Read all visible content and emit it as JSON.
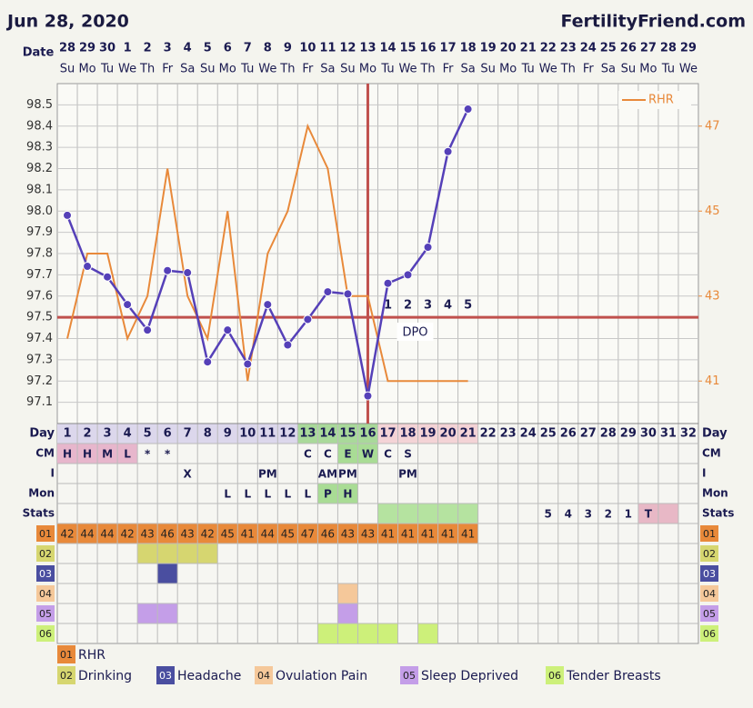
{
  "chart_data": {
    "type": "line",
    "title": "Jun 28, 2020",
    "brand": "FertilityFriend.com",
    "date_label": "Date",
    "day_label": "Day",
    "dates": [
      28,
      29,
      30,
      1,
      2,
      3,
      4,
      5,
      6,
      7,
      8,
      9,
      10,
      11,
      12,
      13,
      14,
      15,
      16,
      17,
      18,
      19,
      20,
      21,
      22,
      23,
      24,
      25,
      26,
      27,
      28,
      29
    ],
    "weekdays": [
      "Su",
      "Mo",
      "Tu",
      "We",
      "Th",
      "Fr",
      "Sa",
      "Su",
      "Mo",
      "Tu",
      "We",
      "Th",
      "Fr",
      "Sa",
      "Su",
      "Mo",
      "Tu",
      "We",
      "Th",
      "Fr",
      "Sa",
      "Su",
      "Mo",
      "Tu",
      "We",
      "Th",
      "Fr",
      "Sa",
      "Su",
      "Mo",
      "Tu",
      "We"
    ],
    "categories": [
      1,
      2,
      3,
      4,
      5,
      6,
      7,
      8,
      9,
      10,
      11,
      12,
      13,
      14,
      15,
      16,
      17,
      18,
      19,
      20,
      21,
      22,
      23,
      24,
      25,
      26,
      27,
      28,
      29,
      30,
      31,
      32
    ],
    "day_fills": [
      {
        "start": 1,
        "end": 12,
        "color": "#dcd7ec"
      },
      {
        "start": 13,
        "end": 16,
        "color": "#a9d99a"
      },
      {
        "start": 17,
        "end": 21,
        "color": "#f4d3d6"
      }
    ],
    "series": [
      {
        "name": "Temperature",
        "color": "#5540b8",
        "values": [
          97.98,
          97.74,
          97.69,
          97.56,
          97.44,
          97.72,
          97.71,
          97.29,
          97.44,
          97.28,
          97.56,
          97.37,
          97.49,
          97.62,
          97.61,
          97.13,
          97.66,
          97.7,
          97.83,
          98.28,
          98.48,
          null,
          null,
          null,
          null,
          null,
          null,
          null,
          null,
          null,
          null,
          null
        ]
      },
      {
        "name": "RHR",
        "color": "#e8893a",
        "axis": "y2",
        "values": [
          42,
          44,
          44,
          42,
          43,
          46,
          43,
          42,
          45,
          41,
          44,
          45,
          47,
          46,
          43,
          43,
          41,
          41,
          41,
          41,
          41,
          null,
          null,
          null,
          null,
          null,
          null,
          null,
          null,
          null,
          null,
          null
        ]
      }
    ],
    "ylim": [
      97.0,
      98.6
    ],
    "yticks": [
      97.1,
      97.2,
      97.3,
      97.4,
      97.5,
      97.6,
      97.7,
      97.8,
      97.9,
      {
        "value": 98.0,
        "label": "98.0"
      },
      98.1,
      98.2,
      98.3,
      98.4,
      98.5
    ],
    "y2lim": [
      40,
      48
    ],
    "y2ticks": [
      41,
      43,
      45,
      47
    ],
    "grid": true,
    "coverline": 97.5,
    "coverline_color": "#c0504d",
    "ovulation_day": 16,
    "dpo_label": "DPO",
    "dpo": [
      null,
      null,
      null,
      null,
      null,
      null,
      null,
      null,
      null,
      null,
      null,
      null,
      null,
      null,
      null,
      null,
      1,
      2,
      3,
      4,
      5,
      null,
      null,
      null,
      null,
      null,
      null,
      null,
      null,
      null,
      null,
      null
    ],
    "rows": [
      {
        "label": "CM",
        "values": [
          "H",
          "H",
          "M",
          "L",
          "*",
          "*",
          null,
          null,
          null,
          null,
          null,
          null,
          "C",
          "C",
          "E",
          "W",
          "C",
          "S",
          null,
          null,
          null,
          null,
          null,
          null,
          null,
          null,
          null,
          null,
          null,
          null,
          null,
          null
        ],
        "fills": [
          {
            "start": 1,
            "end": 4,
            "color": "#e7b6cc"
          },
          {
            "start": 15,
            "end": 16,
            "color": "#a9dc95"
          }
        ]
      },
      {
        "label": "I",
        "values": [
          null,
          null,
          null,
          null,
          null,
          null,
          "X",
          null,
          null,
          null,
          "PM",
          null,
          null,
          "AM",
          "PM",
          null,
          null,
          "PM",
          null,
          null,
          null,
          null,
          null,
          null,
          null,
          null,
          null,
          null,
          null,
          null,
          null,
          null
        ],
        "fills": []
      },
      {
        "label": "Mon",
        "values": [
          null,
          null,
          null,
          null,
          null,
          null,
          null,
          null,
          "L",
          "L",
          "L",
          "L",
          "L",
          "P",
          "H",
          null,
          null,
          null,
          null,
          null,
          null,
          null,
          null,
          null,
          null,
          null,
          null,
          null,
          null,
          null,
          null,
          null
        ],
        "fills": [
          {
            "start": 14,
            "end": 15,
            "color": "#a9dc95"
          }
        ]
      },
      {
        "label": "Stats",
        "values": [
          null,
          null,
          null,
          null,
          null,
          null,
          null,
          null,
          null,
          null,
          null,
          null,
          null,
          null,
          null,
          null,
          null,
          null,
          null,
          null,
          null,
          null,
          null,
          null,
          5,
          4,
          3,
          2,
          1,
          "T",
          null,
          null
        ],
        "fills": [
          {
            "start": 17,
            "end": 21,
            "color": "#b5e3a0"
          },
          {
            "start": 30,
            "end": 31,
            "color": "#e8b8c6"
          }
        ]
      }
    ],
    "symptoms": [
      {
        "code": "01",
        "name": "RHR",
        "color": "#e8893a"
      },
      {
        "code": "02",
        "name": "Drinking",
        "color": "#d6d670",
        "days": [
          5,
          6,
          7,
          8
        ]
      },
      {
        "code": "03",
        "name": "Headache",
        "color": "#4a4ea0",
        "days": [
          6
        ]
      },
      {
        "code": "04",
        "name": "Ovulation Pain",
        "color": "#f5c89a",
        "days": [
          15
        ]
      },
      {
        "code": "05",
        "name": "Sleep Deprived",
        "color": "#c49ee8",
        "days": [
          5,
          6,
          15
        ]
      },
      {
        "code": "06",
        "name": "Tender Breasts",
        "color": "#cdf07a",
        "days": [
          14,
          15,
          16,
          17,
          19
        ]
      }
    ]
  }
}
